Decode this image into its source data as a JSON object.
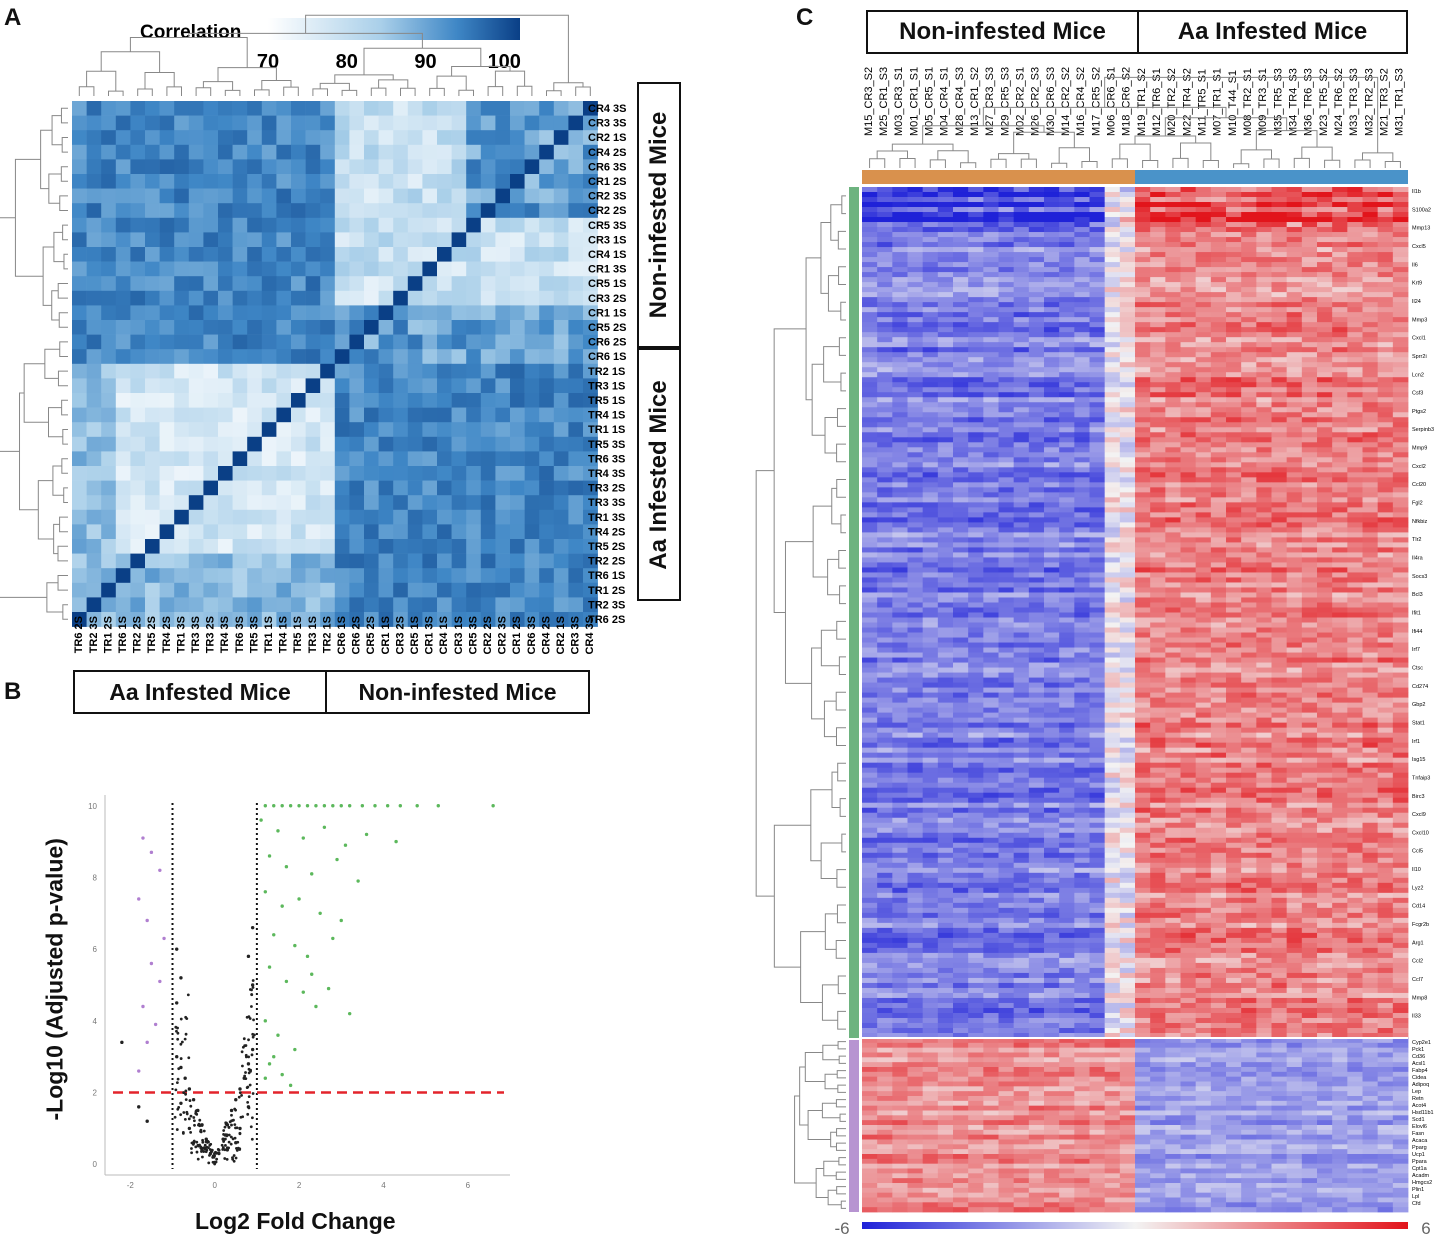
{
  "panels": {
    "a": "A",
    "b": "B",
    "c": "C"
  },
  "colors": {
    "blue_dark": "#0a3f86",
    "blue_light": "#f4f8fd",
    "heat_blue": "#1f22d8",
    "heat_red": "#e2141b",
    "green": "#43a047",
    "orange": "#d9914d",
    "bar_blue": "#4a93c9",
    "bar_green": "#6db37f",
    "bar_purple": "#b794d1"
  },
  "chart_data": [
    {
      "type": "heatmap",
      "id": "A",
      "title": "Correlation",
      "colorbar_ticks": [
        "70",
        "80",
        "90",
        "100"
      ],
      "colorbar_range": [
        70,
        102
      ],
      "row_labels": [
        "CR4 3S",
        "CR3 3S",
        "CR2 1S",
        "CR4 2S",
        "CR6 3S",
        "CR1 2S",
        "CR2 3S",
        "CR2 2S",
        "CR5 3S",
        "CR3 1S",
        "CR4 1S",
        "CR1 3S",
        "CR5 1S",
        "CR3 2S",
        "CR1 1S",
        "CR5 2S",
        "CR6 2S",
        "CR6 1S",
        "TR2 1S",
        "TR3 1S",
        "TR5 1S",
        "TR4 1S",
        "TR1 1S",
        "TR5 3S",
        "TR6 3S",
        "TR4 3S",
        "TR3 2S",
        "TR3 3S",
        "TR1 3S",
        "TR4 2S",
        "TR5 2S",
        "TR2 2S",
        "TR6 1S",
        "TR1 2S",
        "TR2 3S",
        "TR6 2S"
      ],
      "col_labels": [
        "TR6 2S",
        "TR2 3S",
        "TR1 2S",
        "TR6 1S",
        "TR2 2S",
        "TR5 2S",
        "TR4 2S",
        "TR1 3S",
        "TR3 3S",
        "TR3 2S",
        "TR4 3S",
        "TR6 3S",
        "TR5 3S",
        "TR1 1S",
        "TR4 1S",
        "TR5 1S",
        "TR3 1S",
        "TR2 1S",
        "CR6 1S",
        "CR6 2S",
        "CR5 2S",
        "CR1 1S",
        "CR3 2S",
        "CR5 1S",
        "CR1 3S",
        "CR4 1S",
        "CR3 1S",
        "CR5 3S",
        "CR2 2S",
        "CR2 3S",
        "CR1 2S",
        "CR6 3S",
        "CR4 2S",
        "CR2 1S",
        "CR3 3S",
        "CR4 3S"
      ],
      "group_labels": {
        "rows_top": "Non-infested Mice",
        "rows_bottom": "Aa Infested Mice",
        "cols_left": "Aa Infested Mice",
        "cols_right": "Non-infested Mice"
      }
    },
    {
      "type": "scatter",
      "id": "B",
      "title": "",
      "xlabel": "Log2 Fold Change",
      "ylabel": "-Log10 (Adjusted p-value)",
      "xlim": [
        -2.6,
        7.0
      ],
      "ylim": [
        -0.3,
        10.3
      ],
      "x_ticks": [
        "-2",
        "0",
        "2",
        "4",
        "6"
      ],
      "y_ticks": [
        "0",
        "2",
        "4",
        "6",
        "8",
        "10"
      ],
      "fold_change_thresholds": [
        -1,
        1
      ],
      "significance_threshold": 2,
      "series": [
        {
          "name": "up-regulated",
          "color": "#5cb85c",
          "points": [
            [
              1.2,
              10
            ],
            [
              1.4,
              10
            ],
            [
              1.6,
              10
            ],
            [
              1.8,
              10
            ],
            [
              2.0,
              10
            ],
            [
              2.2,
              10
            ],
            [
              2.4,
              10
            ],
            [
              2.6,
              10
            ],
            [
              2.8,
              10
            ],
            [
              3.0,
              10
            ],
            [
              3.2,
              10
            ],
            [
              3.5,
              10
            ],
            [
              3.8,
              10
            ],
            [
              4.1,
              10
            ],
            [
              4.4,
              10
            ],
            [
              4.8,
              10
            ],
            [
              5.3,
              10
            ],
            [
              6.6,
              10
            ],
            [
              1.1,
              9.6
            ],
            [
              1.5,
              9.3
            ],
            [
              2.1,
              9.1
            ],
            [
              2.6,
              9.4
            ],
            [
              3.1,
              8.9
            ],
            [
              3.6,
              9.2
            ],
            [
              4.3,
              9.0
            ],
            [
              1.3,
              8.6
            ],
            [
              1.7,
              8.3
            ],
            [
              2.3,
              8.1
            ],
            [
              2.9,
              8.5
            ],
            [
              3.4,
              7.9
            ],
            [
              1.2,
              7.6
            ],
            [
              1.6,
              7.2
            ],
            [
              2.0,
              7.4
            ],
            [
              2.5,
              7.0
            ],
            [
              3.0,
              6.8
            ],
            [
              1.4,
              6.4
            ],
            [
              1.9,
              6.1
            ],
            [
              2.2,
              5.8
            ],
            [
              2.8,
              6.3
            ],
            [
              1.3,
              5.5
            ],
            [
              1.7,
              5.1
            ],
            [
              2.1,
              4.8
            ],
            [
              2.4,
              4.4
            ],
            [
              3.2,
              4.2
            ],
            [
              1.2,
              4.0
            ],
            [
              1.5,
              3.6
            ],
            [
              1.9,
              3.2
            ],
            [
              1.3,
              2.8
            ],
            [
              1.6,
              2.5
            ],
            [
              1.8,
              2.2
            ],
            [
              1.2,
              2.4
            ],
            [
              2.3,
              5.3
            ],
            [
              2.7,
              4.9
            ],
            [
              1.4,
              3.0
            ]
          ]
        },
        {
          "name": "down-regulated",
          "color": "#b07fd0",
          "points": [
            [
              -1.7,
              9.1
            ],
            [
              -1.5,
              8.7
            ],
            [
              -1.3,
              8.2
            ],
            [
              -1.8,
              7.4
            ],
            [
              -1.6,
              6.8
            ],
            [
              -1.2,
              6.3
            ],
            [
              -1.5,
              5.6
            ],
            [
              -1.3,
              5.1
            ],
            [
              -1.7,
              4.4
            ],
            [
              -1.4,
              3.9
            ],
            [
              -1.6,
              3.4
            ],
            [
              -1.8,
              2.6
            ]
          ]
        },
        {
          "name": "not significant",
          "color": "#222222",
          "points": [
            [
              -0.9,
              3.0
            ],
            [
              -0.8,
              2.7
            ],
            [
              -0.7,
              2.4
            ],
            [
              -0.6,
              2.1
            ],
            [
              -0.5,
              1.8
            ],
            [
              -0.4,
              1.5
            ],
            [
              -0.3,
              1.1
            ],
            [
              -0.2,
              0.7
            ],
            [
              -0.1,
              0.3
            ],
            [
              0.0,
              0.05
            ],
            [
              0.1,
              0.3
            ],
            [
              0.2,
              0.7
            ],
            [
              0.3,
              1.1
            ],
            [
              0.4,
              1.5
            ],
            [
              0.5,
              1.8
            ],
            [
              0.6,
              2.1
            ],
            [
              0.7,
              2.4
            ],
            [
              0.8,
              2.8
            ],
            [
              0.9,
              3.2
            ],
            [
              -0.9,
              4.5
            ],
            [
              -0.8,
              5.2
            ],
            [
              -0.9,
              6.0
            ],
            [
              0.9,
              5.0
            ],
            [
              0.8,
              5.8
            ],
            [
              0.9,
              6.6
            ],
            [
              -0.6,
              1.0
            ],
            [
              0.6,
              1.0
            ],
            [
              -0.3,
              0.4
            ],
            [
              0.3,
              0.4
            ],
            [
              -0.8,
              1.7
            ],
            [
              0.8,
              1.6
            ],
            [
              -0.5,
              0.6
            ],
            [
              0.5,
              0.6
            ],
            [
              -2.2,
              3.4
            ],
            [
              -1.8,
              1.6
            ],
            [
              -1.6,
              1.2
            ]
          ]
        }
      ]
    },
    {
      "type": "heatmap",
      "id": "C",
      "colorbar_ticks": [
        "-6",
        "6"
      ],
      "colorbar_range": [
        -6,
        6
      ],
      "column_groups": {
        "left": "Non-infested Mice",
        "right": "Aa Infested Mice"
      },
      "col_labels": [
        "M15_CR3_S2",
        "M25_CR1_S3",
        "M03_CR3_S1",
        "M01_CR1_S1",
        "M05_CR5_S1",
        "M04_CR4_S1",
        "M28_CR4_S3",
        "M13_CR1_S2",
        "M27_CR3_S3",
        "M29_CR5_S3",
        "M02_CR2_S1",
        "M26_CR2_S3",
        "M30_CR6_S3",
        "M14_CR2_S2",
        "M16_CR4_S2",
        "M17_CR5_S2",
        "M06_CR6_S1",
        "M18_CR6_S2",
        "M19_TR1_S2",
        "M12_TR6_S1",
        "M20_TR2_S2",
        "M22_TR4_S2",
        "M11_TR5_S1",
        "M07_TR1_S1",
        "M10_T44_S1",
        "M08_TR2_S1",
        "M09_TR3_S1",
        "M35_TR5_S3",
        "M34_TR4_S3",
        "M36_TR6_S3",
        "M23_TR5_S2",
        "M24_TR6_S2",
        "M33_TR3_S3",
        "M32_TR2_S3",
        "M21_TR3_S2",
        "M31_TR1_S3"
      ],
      "gene_labels_top": [
        "Il1b",
        "S100a2",
        "Mmp13",
        "Cxcl5",
        "Il6",
        "Krt9",
        "Il24",
        "Mmp3",
        "Cxcl1",
        "Sprr2i",
        "Lcn2",
        "Csf3",
        "Ptgs2",
        "Serpinb3",
        "Mmp9",
        "Cxcl2",
        "Ccl20",
        "Fgl2",
        "Nfkbiz",
        "Tlr2",
        "Il4ra",
        "Socs3",
        "Bcl3",
        "Ifit1",
        "Ifi44",
        "Irf7",
        "Ctsc",
        "Cd274",
        "Gbp2",
        "Stat1",
        "Irf1",
        "Isg15",
        "Tnfaip3",
        "Birc3",
        "Cxcl9",
        "Cxcl10",
        "Ccl5",
        "Il10",
        "Lyz2",
        "Cd14",
        "Fcgr2b",
        "Arg1",
        "Ccl2",
        "Ccl7",
        "Mmp8",
        "Il33"
      ],
      "gene_labels_bottom": [
        "Cyp2e1",
        "Pck1",
        "Cd36",
        "Acsl1",
        "Fabp4",
        "Cidea",
        "Adipoq",
        "Lep",
        "Retn",
        "Acot4",
        "Hsd11b1",
        "Scd1",
        "Elovl6",
        "Fasn",
        "Acaca",
        "Pparg",
        "Ucp1",
        "Ppara",
        "Cpt1a",
        "Acadm",
        "Hmgcs2",
        "Plin1",
        "Lpl",
        "Cfd"
      ]
    }
  ],
  "panel_b_labels": {
    "left": "Aa Infested Mice",
    "right": "Non-infested Mice"
  }
}
